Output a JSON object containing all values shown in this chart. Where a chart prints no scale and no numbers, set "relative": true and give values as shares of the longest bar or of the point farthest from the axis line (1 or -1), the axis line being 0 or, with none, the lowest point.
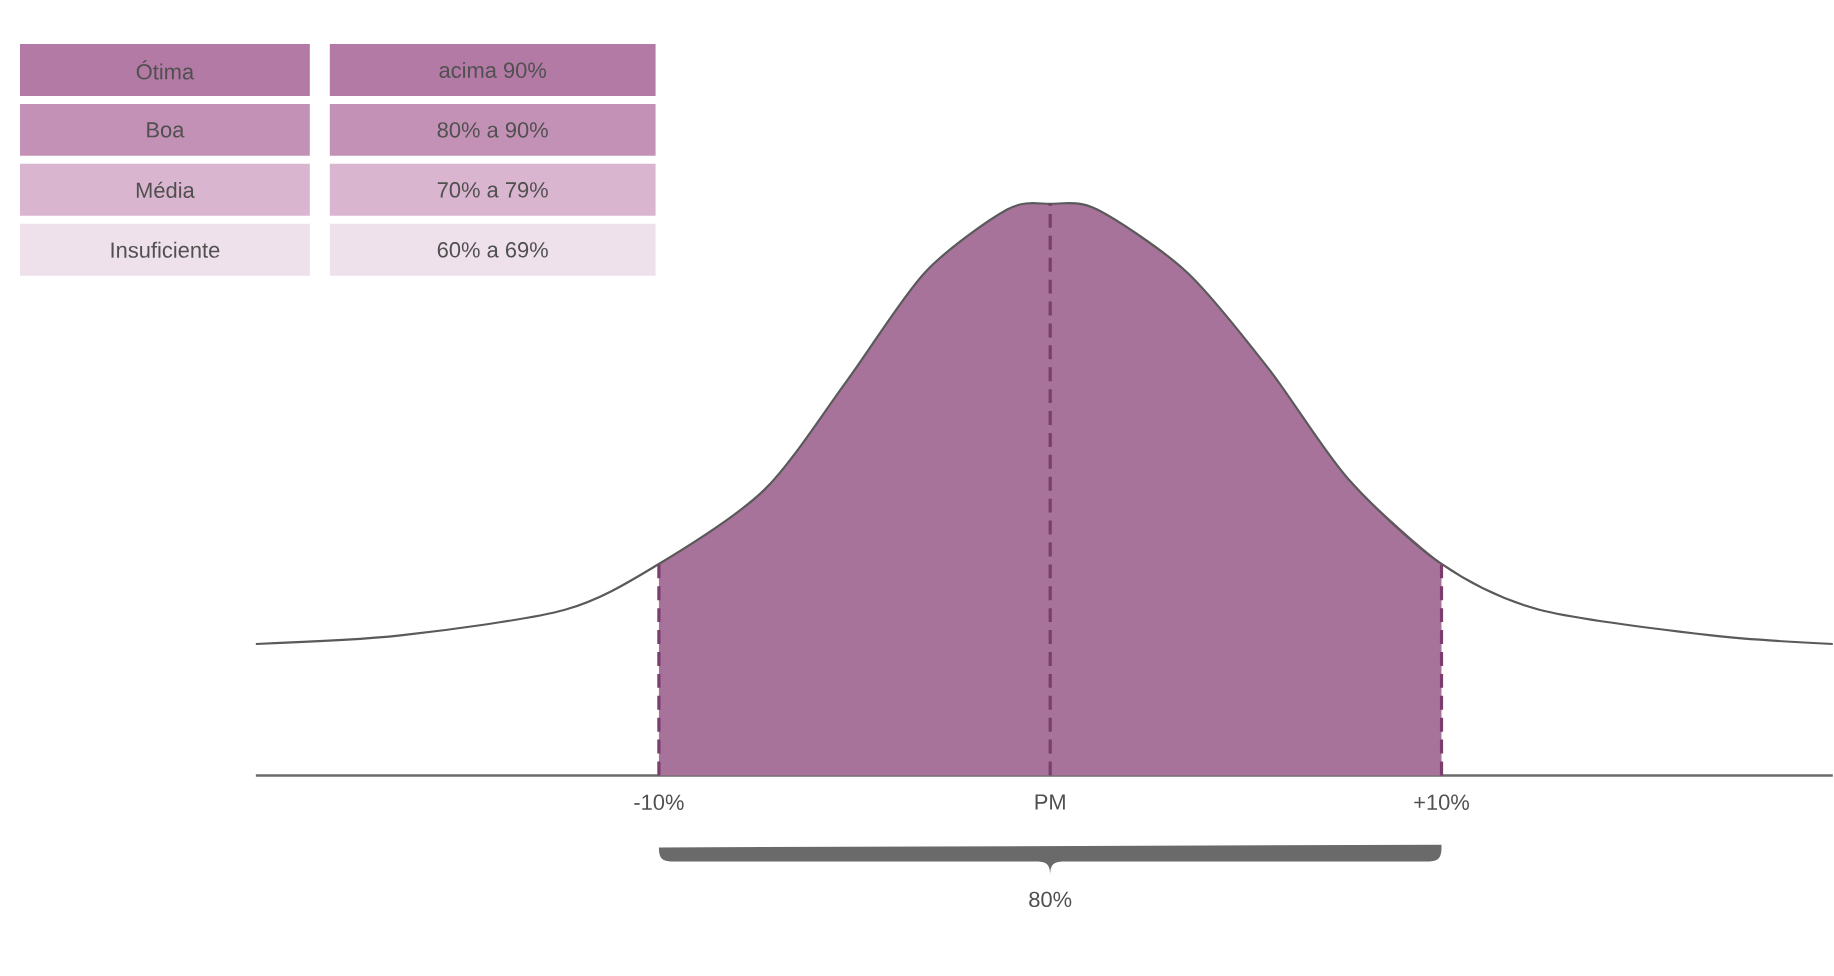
{
  "chart_data": [
    {
      "type": "other",
      "annotations": [
        "Ótima",
        "acima 90%",
        "Boa",
        "80% a 90%",
        "Média",
        "70% a 79%",
        "Insuficiente",
        "60% a 69%"
      ],
      "colors": [
        "#b27aa4",
        "#c491b6",
        "#dab5cf",
        "#efe1ec"
      ]
    },
    {
      "type": "line",
      "relative": true,
      "xlim": [
        -20.3,
        20
      ],
      "xticks": [
        {
          "value": -10,
          "label": "-10%"
        },
        {
          "value": 0,
          "label": "PM"
        },
        {
          "value": 10,
          "label": "+10%"
        }
      ],
      "tick_labels": "x",
      "series": [
        {
          "type": "area",
          "color": "#a8739b",
          "x": [
            -10,
            -7.3,
            -5.2,
            -3.2,
            -1.1,
            0,
            1.2,
            3.5,
            5.6,
            7.6,
            10
          ],
          "values": [
            0.37,
            0.5,
            0.69,
            0.88,
            0.99,
            1,
            0.99,
            0.88,
            0.71,
            0.52,
            0.37
          ]
        },
        {
          "type": "line",
          "color": "#5a5a5a",
          "x": [
            -20.3,
            -16.6,
            -12.4,
            -10,
            -7.3,
            -5.2,
            -3.2,
            -1.1,
            0,
            1.2,
            3.5,
            5.6,
            7.6,
            10,
            12.5,
            16.9,
            20
          ],
          "values": [
            0.23,
            0.245,
            0.29,
            0.37,
            0.5,
            0.69,
            0.88,
            0.99,
            1,
            0.99,
            0.88,
            0.71,
            0.52,
            0.37,
            0.29,
            0.245,
            0.23
          ]
        }
      ],
      "ref_lines": [
        {
          "axis": "x",
          "value": -10,
          "color": "#7a3d6c",
          "line_style": "dashed"
        },
        {
          "axis": "x",
          "value": 0,
          "color": "#7a3d6c",
          "line_style": "dashed"
        },
        {
          "axis": "x",
          "value": 10,
          "color": "#7a3d6c",
          "line_style": "dashed"
        }
      ],
      "annotations": [
        "80%"
      ]
    }
  ]
}
